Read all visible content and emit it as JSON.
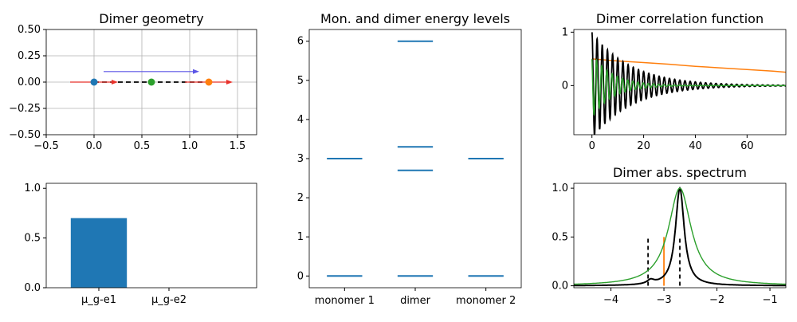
{
  "chart_data": [
    {
      "id": "geometry",
      "type": "scatter",
      "title": "Dimer geometry",
      "xlim": [
        -0.5,
        1.7
      ],
      "ylim": [
        -0.5,
        0.5
      ],
      "xticks": [
        "−0.5",
        "0.0",
        "0.5",
        "1.0",
        "1.5"
      ],
      "yticks": [
        "−0.50",
        "−0.25",
        "0.00",
        "0.25",
        "0.50"
      ],
      "grid": true,
      "points": [
        {
          "x": 0.0,
          "y": 0.0,
          "color": "#1f77b4"
        },
        {
          "x": 0.6,
          "y": 0.0,
          "color": "#2ca02c"
        },
        {
          "x": 1.2,
          "y": 0.0,
          "color": "#ff7f0e"
        }
      ],
      "arrows": [
        {
          "x0": -0.25,
          "y0": 0.0,
          "x1": 0.25,
          "y1": 0.0,
          "color": "#e8312a"
        },
        {
          "x0": 0.95,
          "y0": 0.0,
          "x1": 1.45,
          "y1": 0.0,
          "color": "#e8312a"
        },
        {
          "x0": 0.1,
          "y0": 0.1,
          "x1": 1.1,
          "y1": 0.1,
          "color": "#5b55e6"
        }
      ],
      "dashed_line": {
        "x0": 0.0,
        "x1": 1.2,
        "y": 0.0,
        "color": "#000000"
      }
    },
    {
      "id": "transition_dipoles",
      "type": "bar",
      "categories": [
        "μ_g-e1",
        "μ_g-e2"
      ],
      "values": [
        0.7,
        0.0
      ],
      "color": "#1f77b4",
      "ylim": [
        0,
        1.05
      ],
      "yticks": [
        "0.0",
        "0.5",
        "1.0"
      ]
    },
    {
      "id": "levels",
      "type": "line",
      "title": "Mon. and dimer energy levels",
      "categories": [
        "monomer 1",
        "dimer",
        "monomer 2"
      ],
      "levels": [
        [
          0,
          3
        ],
        [
          0,
          2.7,
          3.3,
          6
        ],
        [
          0,
          3
        ]
      ],
      "ylim": [
        -0.3,
        6.3
      ],
      "yticks": [
        "0",
        "1",
        "2",
        "3",
        "4",
        "5",
        "6"
      ],
      "color": "#1f77b4"
    },
    {
      "id": "correlation",
      "type": "line",
      "title": "Dimer correlation function",
      "xlim": [
        -7,
        75
      ],
      "ylim": [
        -0.92,
        1.05
      ],
      "xticks": [
        "0",
        "20",
        "40",
        "60"
      ],
      "yticks": [
        "0",
        "1"
      ],
      "series": [
        {
          "kind": "orange",
          "color": "#ff7f0e",
          "x": [
            0,
            10,
            20,
            30,
            40,
            50,
            60,
            70,
            75
          ],
          "y": [
            0.5,
            0.46,
            0.43,
            0.4,
            0.36,
            0.33,
            0.3,
            0.27,
            0.25
          ]
        },
        {
          "kind": "black_osc",
          "color": "#000000",
          "period": 2.0,
          "decay": 15,
          "amp": 1.0
        },
        {
          "kind": "green_osc",
          "color": "#2ca02c",
          "period": 2.0,
          "decay": 8,
          "amp": 0.6
        }
      ]
    },
    {
      "id": "spectrum",
      "type": "line",
      "title": "Dimer abs. spectrum",
      "xlim": [
        -4.7,
        -0.7
      ],
      "ylim": [
        -0.02,
        1.05
      ],
      "xticks": [
        "−4",
        "−3",
        "−2",
        "−1"
      ],
      "yticks": [
        "0.0",
        "0.5",
        "1.0"
      ],
      "black": {
        "center": -2.7,
        "width": 0.1,
        "shoulder": -3.25,
        "shoulder_amp": 0.04
      },
      "green": {
        "center": -2.7,
        "width": 0.26
      },
      "sticks": [
        {
          "x": -3.3,
          "h": 0.5,
          "color": "#000000",
          "dashed": true
        },
        {
          "x": -2.7,
          "h": 0.5,
          "color": "#000000",
          "dashed": true
        },
        {
          "x": -3.0,
          "h": 0.5,
          "color": "#ff7f0e",
          "dashed": false
        }
      ]
    }
  ]
}
